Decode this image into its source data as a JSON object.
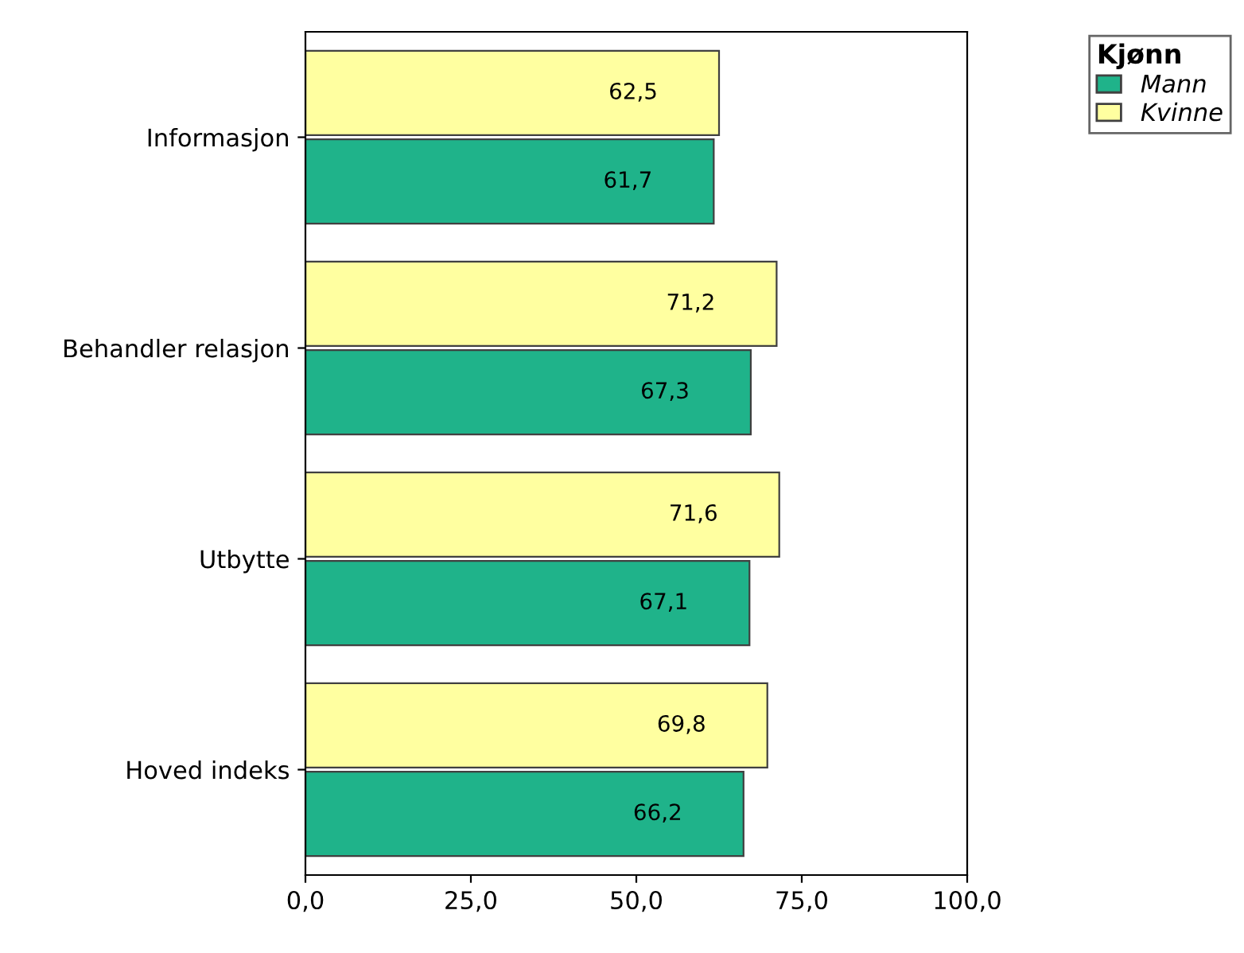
{
  "chart_data": {
    "type": "bar",
    "orientation": "horizontal",
    "categories": [
      "Informasjon",
      "Behandler relasjon",
      "Utbytte",
      "Hoved indeks"
    ],
    "series": [
      {
        "name": "Mann",
        "color": "#1fb38a",
        "values": [
          61.7,
          67.3,
          67.1,
          66.2
        ],
        "value_labels": [
          "61,7",
          "67,3",
          "67,1",
          "66,2"
        ]
      },
      {
        "name": "Kvinne",
        "color": "#ffffa0",
        "values": [
          62.5,
          71.2,
          71.6,
          69.8
        ],
        "value_labels": [
          "62,5",
          "71,2",
          "71,6",
          "69,8"
        ]
      }
    ],
    "xlim": [
      0,
      100
    ],
    "xticks": [
      {
        "value": 0,
        "label": "0,0"
      },
      {
        "value": 25,
        "label": "25,0"
      },
      {
        "value": 50,
        "label": "50,0"
      },
      {
        "value": 75,
        "label": "75,0"
      },
      {
        "value": 100,
        "label": "100,0"
      }
    ],
    "legend_title": "Kjønn",
    "legend": "top right",
    "grid": false
  }
}
